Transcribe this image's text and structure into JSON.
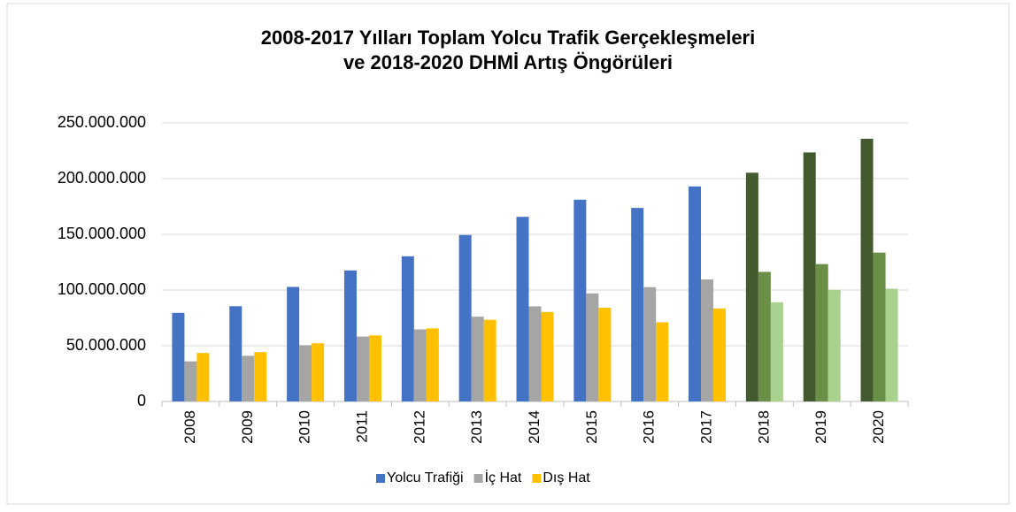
{
  "chart_data": {
    "type": "bar",
    "title": [
      "2008-2017 Yılları Toplam Yolcu Trafik Gerçekleşmeleri",
      "ve 2018-2020 DHMİ Artış Öngörüleri"
    ],
    "categories": [
      "2008",
      "2009",
      "2010",
      "2011",
      "2012",
      "2013",
      "2014",
      "2015",
      "2016",
      "2017",
      "2018",
      "2019",
      "2020"
    ],
    "series": [
      {
        "name": "Yolcu Trafiği",
        "color": "#4472c4",
        "colors": [
          "#4472c4",
          "#4472c4",
          "#4472c4",
          "#4472c4",
          "#4472c4",
          "#4472c4",
          "#4472c4",
          "#4472c4",
          "#4472c4",
          "#4472c4",
          "#435a2e",
          "#435a2e",
          "#435a2e"
        ],
        "values": [
          79500000,
          85500000,
          102800000,
          117600000,
          130300000,
          149400000,
          165700000,
          181100000,
          173700000,
          193000000,
          205300000,
          223500000,
          235800000
        ]
      },
      {
        "name": "İç Hat",
        "color": "#a5a5a5",
        "colors": [
          "#a5a5a5",
          "#a5a5a5",
          "#a5a5a5",
          "#a5a5a5",
          "#a5a5a5",
          "#a5a5a5",
          "#a5a5a5",
          "#a5a5a5",
          "#a5a5a5",
          "#a5a5a5",
          "#6b8f47",
          "#6b8f47",
          "#6b8f47"
        ],
        "values": [
          36000000,
          41000000,
          50500000,
          58300000,
          64700000,
          76100000,
          85400000,
          97000000,
          102600000,
          109500000,
          116300000,
          123300000,
          133600000
        ]
      },
      {
        "name": "Dış Hat",
        "color": "#ffc000",
        "colors": [
          "#ffc000",
          "#ffc000",
          "#ffc000",
          "#ffc000",
          "#ffc000",
          "#ffc000",
          "#ffc000",
          "#ffc000",
          "#ffc000",
          "#ffc000",
          "#a9d18e",
          "#a9d18e",
          "#a9d18e"
        ],
        "values": [
          43500000,
          44300000,
          52200000,
          59300000,
          65600000,
          73300000,
          80300000,
          84100000,
          71100000,
          83500000,
          89000000,
          100200000,
          101200000
        ]
      }
    ],
    "ylim": [
      0,
      250000000
    ],
    "yticks": [
      0,
      {
        "value": 50000000,
        "label": "50.000.000"
      },
      {
        "value": 100000000,
        "label": "100.000.000"
      },
      {
        "value": 150000000,
        "label": "150.000.000"
      },
      {
        "value": 200000000,
        "label": "200.000.000"
      },
      {
        "value": 250000000,
        "label": "250.000.000"
      }
    ],
    "grid": true,
    "legend": "bottom"
  }
}
